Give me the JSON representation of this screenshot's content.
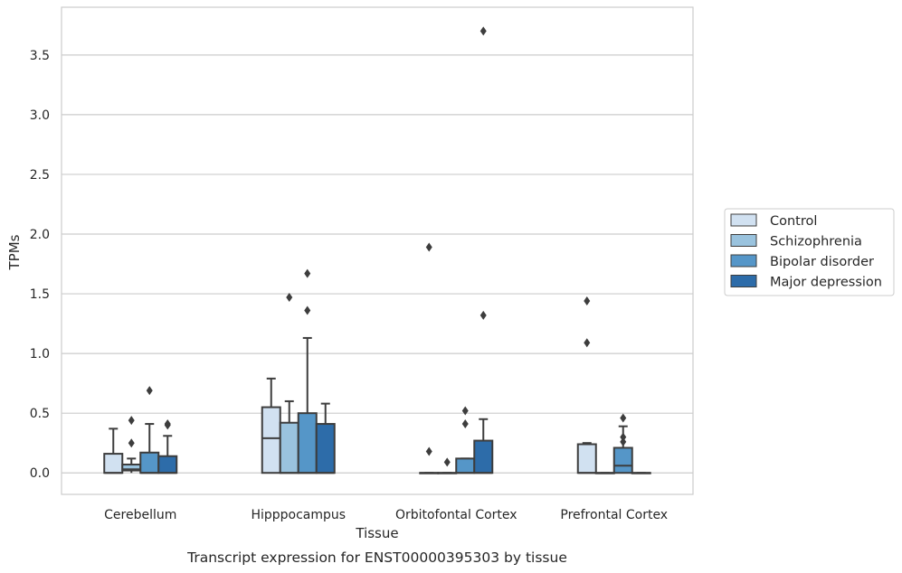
{
  "chart_data": {
    "type": "box",
    "xlabel": "Tissue",
    "ylabel": "TPMs",
    "caption": "Transcript expression for ENST00000395303 by tissue",
    "ylim": [
      -0.18,
      3.9
    ],
    "yticks": [
      0.0,
      0.5,
      1.0,
      1.5,
      2.0,
      2.5,
      3.0,
      3.5
    ],
    "ytick_labels": [
      "0.0",
      "0.5",
      "1.0",
      "1.5",
      "2.0",
      "2.5",
      "3.0",
      "3.5"
    ],
    "grid": "horizontal",
    "legend_placement": "right",
    "categories": [
      "Cerebellum",
      "Hipppocampus",
      "Orbitofontal Cortex",
      "Prefrontal Cortex"
    ],
    "series": [
      {
        "name": "Control",
        "color": "#d1e1f1",
        "boxes": [
          {
            "q1": 0.0,
            "median": 0.0,
            "q3": 0.16,
            "whisker_low": 0.0,
            "whisker_high": 0.37,
            "outliers": []
          },
          {
            "q1": 0.0,
            "median": 0.29,
            "q3": 0.55,
            "whisker_low": 0.0,
            "whisker_high": 0.79,
            "outliers": []
          },
          {
            "q1": 0.0,
            "median": 0.0,
            "q3": 0.0,
            "whisker_low": 0.0,
            "whisker_high": 0.0,
            "outliers": [
              0.18,
              1.89
            ]
          },
          {
            "q1": 0.0,
            "median": 0.0,
            "q3": 0.24,
            "whisker_low": 0.0,
            "whisker_high": 0.25,
            "outliers": [
              1.09,
              1.44
            ]
          }
        ]
      },
      {
        "name": "Schizophrenia",
        "color": "#9ac3de",
        "boxes": [
          {
            "q1": 0.02,
            "median": 0.03,
            "q3": 0.07,
            "whisker_low": 0.0,
            "whisker_high": 0.12,
            "outliers": [
              0.25,
              0.44
            ]
          },
          {
            "q1": 0.0,
            "median": 0.0,
            "q3": 0.42,
            "whisker_low": 0.0,
            "whisker_high": 0.6,
            "outliers": [
              1.47
            ]
          },
          {
            "q1": 0.0,
            "median": 0.0,
            "q3": 0.0,
            "whisker_low": 0.0,
            "whisker_high": 0.0,
            "outliers": [
              0.09
            ]
          },
          {
            "q1": 0.0,
            "median": 0.0,
            "q3": 0.0,
            "whisker_low": 0.0,
            "whisker_high": 0.0,
            "outliers": []
          }
        ]
      },
      {
        "name": "Bipolar disorder",
        "color": "#5596c8",
        "boxes": [
          {
            "q1": 0.0,
            "median": 0.0,
            "q3": 0.17,
            "whisker_low": 0.0,
            "whisker_high": 0.41,
            "outliers": [
              0.69
            ]
          },
          {
            "q1": 0.0,
            "median": 0.0,
            "q3": 0.5,
            "whisker_low": 0.0,
            "whisker_high": 1.13,
            "outliers": [
              1.36,
              1.67
            ]
          },
          {
            "q1": 0.0,
            "median": 0.0,
            "q3": 0.12,
            "whisker_low": 0.0,
            "whisker_high": 0.12,
            "outliers": [
              0.41,
              0.52
            ]
          },
          {
            "q1": 0.0,
            "median": 0.06,
            "q3": 0.21,
            "whisker_low": 0.0,
            "whisker_high": 0.39,
            "outliers": [
              0.26,
              0.3,
              0.46
            ]
          }
        ]
      },
      {
        "name": "Major depression",
        "color": "#2d6ca9",
        "boxes": [
          {
            "q1": 0.0,
            "median": 0.0,
            "q3": 0.14,
            "whisker_low": 0.0,
            "whisker_high": 0.31,
            "outliers": [
              0.4,
              0.41
            ]
          },
          {
            "q1": 0.0,
            "median": 0.0,
            "q3": 0.41,
            "whisker_low": 0.0,
            "whisker_high": 0.58,
            "outliers": []
          },
          {
            "q1": 0.0,
            "median": 0.0,
            "q3": 0.27,
            "whisker_low": 0.0,
            "whisker_high": 0.45,
            "outliers": [
              1.32,
              3.7
            ]
          },
          {
            "q1": 0.0,
            "median": 0.0,
            "q3": 0.0,
            "whisker_low": 0.0,
            "whisker_high": 0.0,
            "outliers": []
          }
        ]
      }
    ]
  }
}
